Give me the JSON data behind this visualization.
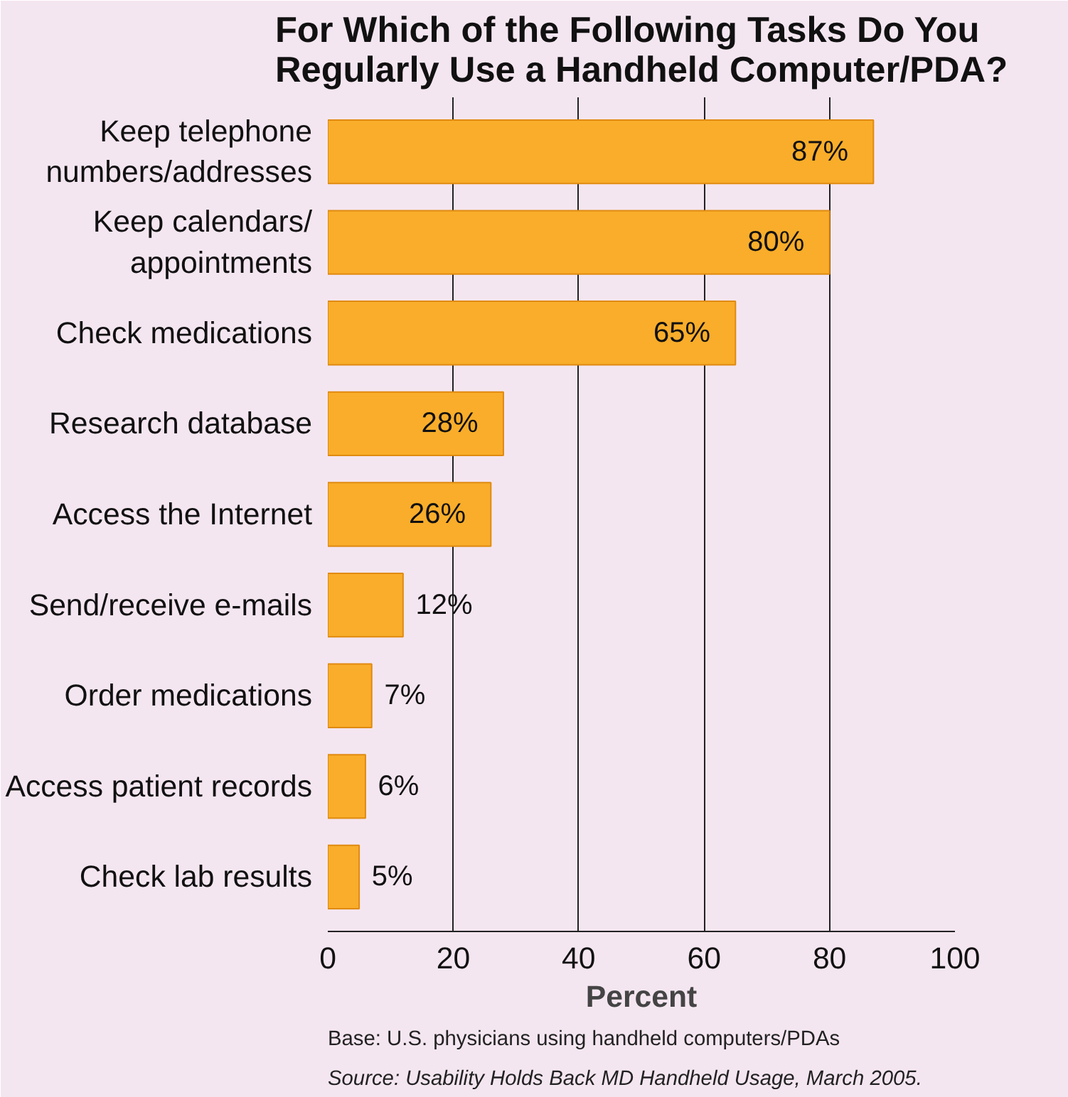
{
  "chart_data": {
    "type": "bar",
    "orientation": "horizontal",
    "title": "For Which of the Following Tasks Do You\nRegularly Use a Handheld Computer/PDA?",
    "xlabel": "Percent",
    "categories": [
      "Keep telephone\nnumbers/addresses",
      "Keep calendars/\nappointments",
      "Check medications",
      "Research database",
      "Access the Internet",
      "Send/receive e-mails",
      "Order medications",
      "Access patient records",
      "Check lab results"
    ],
    "values": [
      87,
      80,
      65,
      28,
      26,
      12,
      7,
      6,
      5
    ],
    "color": "#f9ad2a",
    "xlim": [
      0,
      100
    ],
    "xticks": [
      0,
      20,
      40,
      60,
      80,
      100
    ],
    "value_labels": [
      "87%",
      "80%",
      "65%",
      "28%",
      "26%",
      "12%",
      "7%",
      "6%",
      "5%"
    ],
    "grid": "x",
    "annotations": [
      "Base: U.S. physicians using handheld computers/PDAs",
      "Source: Usability Holds Back MD Handheld Usage, March 2005."
    ]
  }
}
